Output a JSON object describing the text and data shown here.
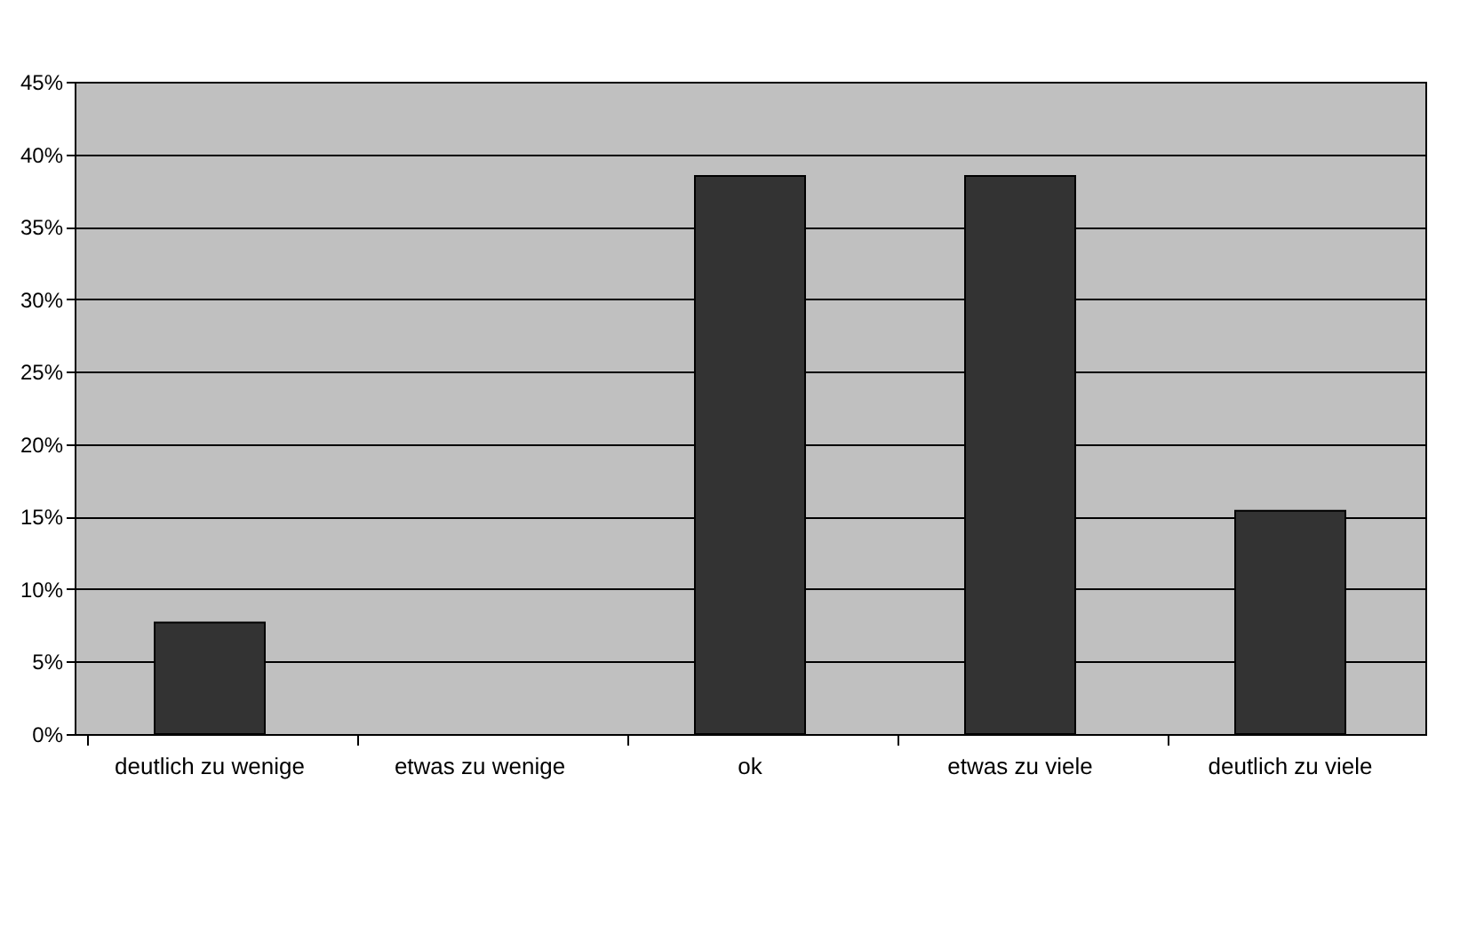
{
  "chart_data": {
    "type": "bar",
    "categories": [
      "deutlich zu wenige",
      "etwas zu wenige",
      "ok",
      "etwas zu viele",
      "deutlich zu viele"
    ],
    "values": [
      7.7,
      0,
      38.5,
      38.5,
      15.4
    ],
    "color": "#333333",
    "ylim": [
      0,
      45
    ],
    "yticks": [
      {
        "value": 0,
        "label": "0%"
      },
      {
        "value": 5,
        "label": "5%"
      },
      {
        "value": 10,
        "label": "10%"
      },
      {
        "value": 15,
        "label": "15%"
      },
      {
        "value": 20,
        "label": "20%"
      },
      {
        "value": 25,
        "label": "25%"
      },
      {
        "value": 30,
        "label": "30%"
      },
      {
        "value": 35,
        "label": "35%"
      },
      {
        "value": 40,
        "label": "40%"
      },
      {
        "value": 45,
        "label": "45%"
      }
    ],
    "grid": "y"
  }
}
